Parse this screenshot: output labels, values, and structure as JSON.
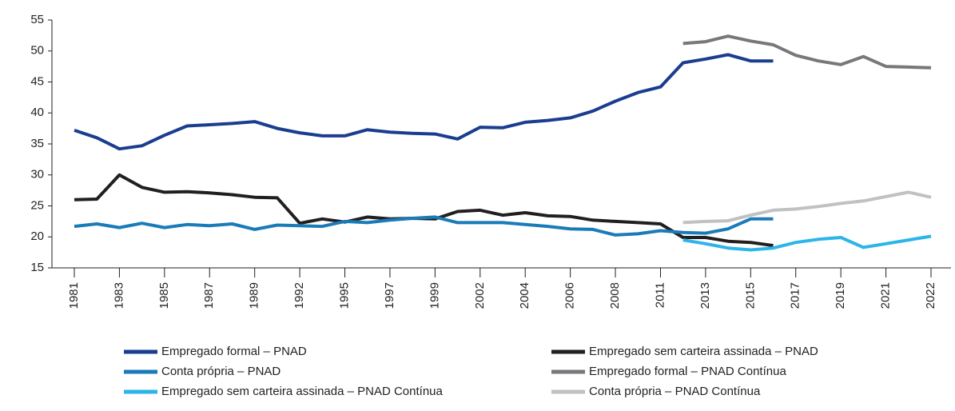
{
  "chart_data": {
    "type": "line",
    "categories": [
      "1981",
      null,
      "1983",
      null,
      "1985",
      null,
      "1987",
      null,
      "1989",
      null,
      "1992",
      null,
      "1995",
      null,
      "1997",
      null,
      "1999",
      null,
      "2002",
      null,
      "2004",
      null,
      "2006",
      null,
      "2008",
      null,
      "2011",
      null,
      "2013",
      null,
      "2015",
      null,
      "2017",
      null,
      "2019",
      null,
      "2021",
      null,
      "2022"
    ],
    "series": [
      {
        "name": "Empregado formal – PNAD",
        "color": "#1b3d8f",
        "values": [
          37.2,
          36.0,
          34.2,
          34.7,
          36.4,
          37.9,
          38.1,
          38.3,
          38.6,
          37.5,
          36.8,
          36.3,
          36.3,
          37.3,
          36.9,
          36.7,
          36.6,
          35.8,
          37.7,
          37.6,
          38.5,
          38.8,
          39.2,
          40.3,
          41.9,
          43.3,
          44.2,
          48.1,
          48.7,
          49.4,
          48.4,
          48.4,
          null,
          null,
          null,
          null,
          null,
          null,
          null
        ]
      },
      {
        "name": "Empregado sem carteira assinada – PNAD",
        "color": "#231f20",
        "values": [
          26.0,
          26.1,
          30.0,
          28.0,
          27.2,
          27.3,
          27.1,
          26.8,
          26.4,
          26.3,
          22.2,
          22.9,
          22.4,
          23.2,
          22.9,
          23.0,
          22.9,
          24.1,
          24.3,
          23.5,
          23.9,
          23.4,
          23.3,
          22.7,
          22.5,
          22.3,
          22.1,
          19.9,
          19.9,
          19.3,
          19.1,
          18.6,
          null,
          null,
          null,
          null,
          null,
          null,
          null
        ]
      },
      {
        "name": "Conta própria – PNAD",
        "color": "#1a7bb9",
        "values": [
          21.7,
          22.1,
          21.5,
          22.2,
          21.5,
          22.0,
          21.8,
          22.1,
          21.2,
          21.9,
          21.8,
          21.7,
          22.5,
          22.3,
          22.7,
          23.0,
          23.2,
          22.3,
          22.3,
          22.3,
          22.0,
          21.7,
          21.3,
          21.2,
          20.3,
          20.5,
          21.0,
          20.7,
          20.6,
          21.3,
          22.9,
          22.9,
          null,
          null,
          null,
          null,
          null,
          null,
          null
        ]
      },
      {
        "name": "Empregado formal – PNAD Contínua",
        "color": "#77787b",
        "values": [
          null,
          null,
          null,
          null,
          null,
          null,
          null,
          null,
          null,
          null,
          null,
          null,
          null,
          null,
          null,
          null,
          null,
          null,
          null,
          null,
          null,
          null,
          null,
          null,
          null,
          null,
          null,
          51.2,
          51.5,
          52.4,
          51.6,
          51.0,
          49.3,
          48.4,
          47.8,
          49.1,
          47.5,
          47.4,
          47.3
        ]
      },
      {
        "name": "Empregado sem carteira assinada – PNAD Contínua",
        "color": "#2cb5e9",
        "values": [
          null,
          null,
          null,
          null,
          null,
          null,
          null,
          null,
          null,
          null,
          null,
          null,
          null,
          null,
          null,
          null,
          null,
          null,
          null,
          null,
          null,
          null,
          null,
          null,
          null,
          null,
          null,
          19.5,
          18.9,
          18.2,
          17.9,
          18.2,
          19.1,
          19.6,
          19.9,
          18.3,
          18.9,
          19.5,
          20.1
        ]
      },
      {
        "name": "Conta própria – PNAD Contínua",
        "color": "#c0c1c3",
        "values": [
          null,
          null,
          null,
          null,
          null,
          null,
          null,
          null,
          null,
          null,
          null,
          null,
          null,
          null,
          null,
          null,
          null,
          null,
          null,
          null,
          null,
          null,
          null,
          null,
          null,
          null,
          null,
          22.3,
          22.5,
          22.6,
          23.5,
          24.3,
          24.5,
          24.9,
          25.4,
          25.8,
          26.5,
          27.2,
          26.4
        ]
      }
    ],
    "ylim": [
      15,
      55
    ],
    "yticks": [
      15,
      20,
      25,
      30,
      35,
      40,
      45,
      50,
      55
    ],
    "grid": false
  }
}
